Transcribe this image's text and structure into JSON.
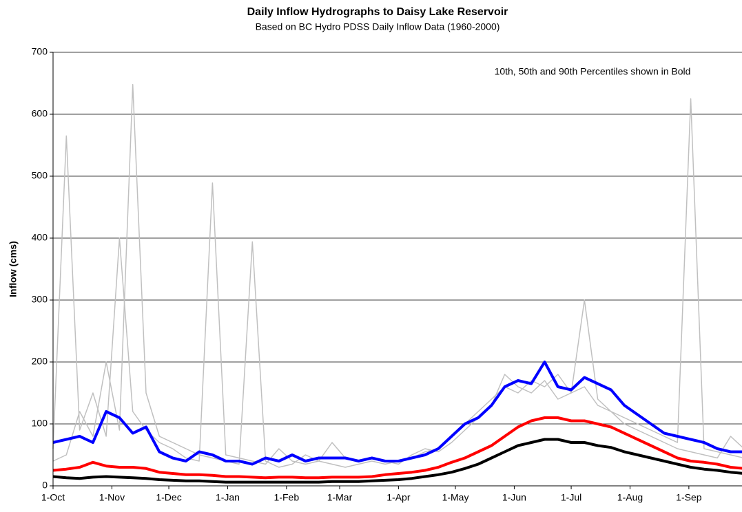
{
  "chart_data": {
    "type": "line",
    "title": "Daily Inflow Hydrographs to Daisy Lake Reservoir",
    "subtitle": "Based on BC Hydro PDSS Daily Inflow Data (1960-2000)",
    "annotation": "10th, 50th and 90th Percentiles shown in Bold",
    "y_label": "Inflow (cms)",
    "x": [
      0,
      7,
      14,
      21,
      28,
      35,
      42,
      49,
      56,
      63,
      70,
      77,
      84,
      91,
      98,
      105,
      112,
      119,
      126,
      133,
      140,
      147,
      154,
      161,
      168,
      175,
      182,
      189,
      196,
      203,
      210,
      217,
      224,
      231,
      238,
      245,
      252,
      259,
      266,
      273,
      280,
      287,
      294,
      301,
      308,
      315,
      322,
      329,
      336,
      343,
      350,
      357,
      364
    ],
    "xlim": [
      0,
      363
    ],
    "xticks": [
      {
        "value": 0,
        "label": "1-Oct"
      },
      {
        "value": 31,
        "label": "1-Nov"
      },
      {
        "value": 61,
        "label": "1-Dec"
      },
      {
        "value": 92,
        "label": "1-Jan"
      },
      {
        "value": 123,
        "label": "1-Feb"
      },
      {
        "value": 151,
        "label": "1-Mar"
      },
      {
        "value": 182,
        "label": "1-Apr"
      },
      {
        "value": 212,
        "label": "1-May"
      },
      {
        "value": 243,
        "label": "1-Jun"
      },
      {
        "value": 273,
        "label": "1-Jul"
      },
      {
        "value": 304,
        "label": "1-Aug"
      },
      {
        "value": 335,
        "label": "1-Sep"
      }
    ],
    "ylim": [
      0,
      700
    ],
    "yticks": [
      0,
      100,
      200,
      300,
      400,
      500,
      600,
      700
    ],
    "grid": true,
    "series": [
      {
        "color": "#c0c0c0",
        "width": 1.5,
        "values": [
          60,
          565,
          90,
          150,
          80,
          400,
          120,
          90,
          70,
          60,
          45,
          40,
          489,
          50,
          45,
          40,
          35,
          60,
          40,
          35,
          40,
          70,
          45,
          40,
          45,
          40,
          35,
          50,
          60,
          55,
          70,
          90,
          110,
          130,
          180,
          160,
          150,
          170,
          140,
          150,
          160,
          130,
          120,
          110,
          100,
          90,
          80,
          70,
          625,
          60,
          55,
          50,
          45
        ]
      },
      {
        "color": "#c0c0c0",
        "width": 1.5,
        "values": [
          40,
          50,
          120,
          80,
          200,
          90,
          648,
          150,
          80,
          70,
          60,
          50,
          45,
          40,
          35,
          394,
          40,
          30,
          35,
          50,
          40,
          35,
          30,
          35,
          40,
          35,
          40,
          45,
          55,
          60,
          80,
          100,
          120,
          140,
          160,
          150,
          170,
          160,
          180,
          150,
          300,
          140,
          120,
          100,
          90,
          80,
          70,
          60,
          55,
          50,
          45,
          80,
          60
        ]
      },
      {
        "color": "#0000ff",
        "width": 4,
        "values": [
          70,
          75,
          80,
          70,
          120,
          110,
          85,
          95,
          55,
          45,
          40,
          55,
          50,
          40,
          40,
          35,
          45,
          40,
          50,
          40,
          45,
          45,
          45,
          40,
          45,
          40,
          40,
          45,
          50,
          60,
          80,
          100,
          110,
          130,
          160,
          170,
          165,
          200,
          160,
          155,
          175,
          165,
          155,
          130,
          115,
          100,
          85,
          80,
          75,
          70,
          60,
          55,
          55
        ]
      },
      {
        "color": "#ff0000",
        "width": 4,
        "values": [
          25,
          27,
          30,
          38,
          32,
          30,
          30,
          28,
          22,
          20,
          18,
          18,
          17,
          15,
          15,
          14,
          13,
          14,
          14,
          13,
          13,
          14,
          14,
          14,
          15,
          18,
          20,
          22,
          25,
          30,
          38,
          45,
          55,
          65,
          80,
          95,
          105,
          110,
          110,
          105,
          105,
          100,
          95,
          85,
          75,
          65,
          55,
          45,
          40,
          38,
          35,
          30,
          28
        ]
      },
      {
        "color": "#000000",
        "width": 4,
        "values": [
          15,
          13,
          12,
          14,
          15,
          14,
          13,
          12,
          10,
          9,
          8,
          8,
          7,
          6,
          6,
          6,
          6,
          6,
          6,
          6,
          6,
          7,
          7,
          7,
          8,
          9,
          10,
          12,
          15,
          18,
          22,
          28,
          35,
          45,
          55,
          65,
          70,
          75,
          75,
          70,
          70,
          65,
          62,
          55,
          50,
          45,
          40,
          35,
          30,
          27,
          25,
          22,
          20
        ]
      }
    ]
  }
}
